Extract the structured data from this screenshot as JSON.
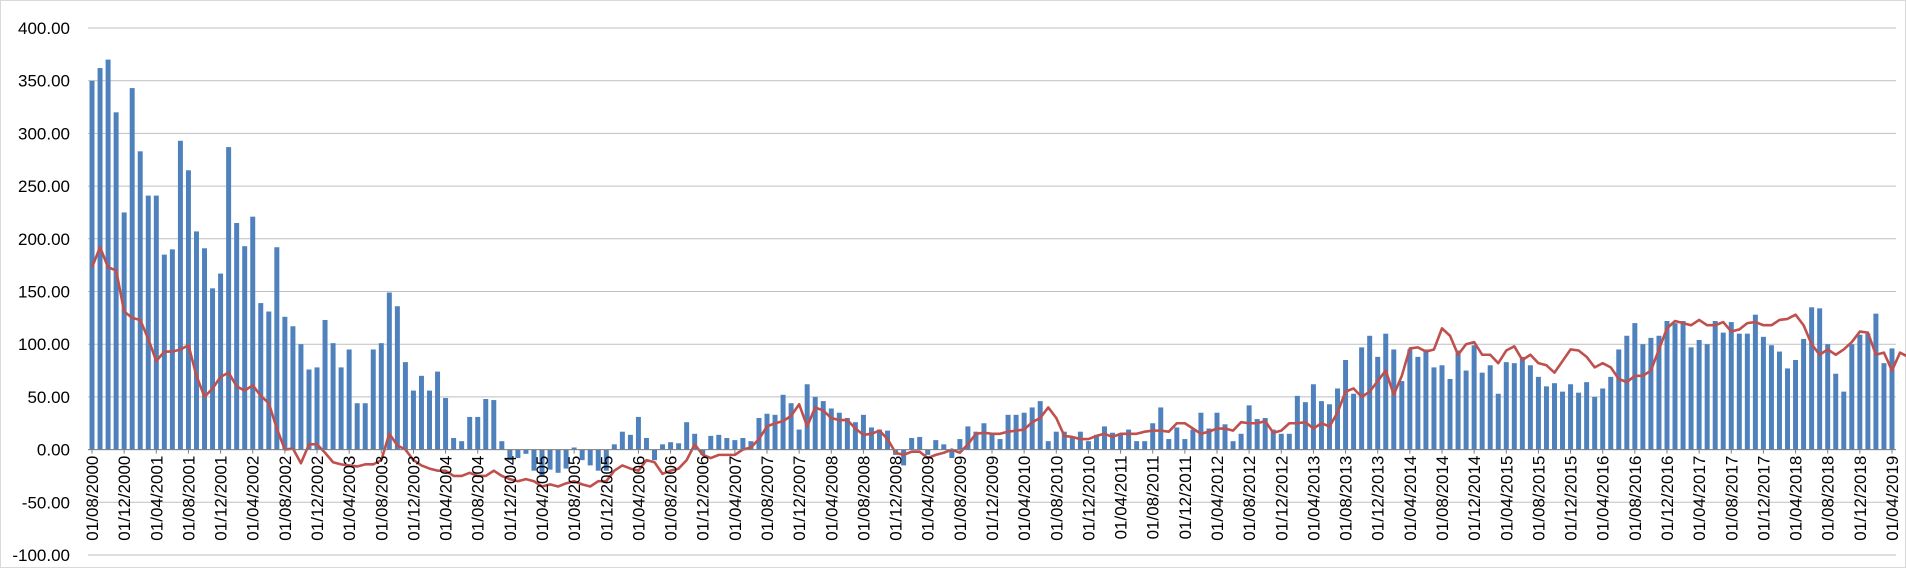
{
  "chart_data": {
    "type": "bar",
    "title": "",
    "xlabel": "",
    "ylabel": "",
    "ylim": [
      -100,
      400
    ],
    "grid": true,
    "legend": "none",
    "yticks": [
      "400.00",
      "350.00",
      "300.00",
      "250.00",
      "200.00",
      "150.00",
      "100.00",
      "50.00",
      "0.00",
      "-50.00",
      "-100.00"
    ],
    "x_labels": [
      "01/08/2000",
      "01/12/2000",
      "01/04/2001",
      "01/08/2001",
      "01/12/2001",
      "01/04/2002",
      "01/08/2002",
      "01/12/2002",
      "01/04/2003",
      "01/08/2003",
      "01/12/2003",
      "01/04/2004",
      "01/08/2004",
      "01/12/2004",
      "01/04/2005",
      "01/08/2005",
      "01/12/2005",
      "01/04/2006",
      "01/08/2006",
      "01/12/2006",
      "01/04/2007",
      "01/08/2007",
      "01/12/2007",
      "01/04/2008",
      "01/08/2008",
      "01/12/2008",
      "01/04/2009",
      "01/08/2009",
      "01/12/2009",
      "01/04/2010",
      "01/08/2010",
      "01/12/2010",
      "01/04/2011",
      "01/08/2011",
      "01/12/2011",
      "01/04/2012",
      "01/08/2012",
      "01/12/2012",
      "01/04/2013",
      "01/08/2013",
      "01/12/2013",
      "01/04/2014",
      "01/08/2014",
      "01/12/2014",
      "01/04/2015",
      "01/08/2015",
      "01/12/2015",
      "01/04/2016",
      "01/08/2016",
      "01/12/2016",
      "01/04/2017",
      "01/08/2017",
      "01/12/2017",
      "01/04/2018",
      "01/08/2018",
      "01/12/2018",
      "01/04/2019"
    ],
    "series": [
      {
        "kind": "bar",
        "color": "#4f81bd",
        "values": [
          350,
          362,
          370,
          320,
          225,
          343,
          283,
          241,
          241,
          185,
          190,
          293,
          265,
          207,
          191,
          153,
          167,
          287,
          215,
          193,
          221,
          139,
          131,
          192,
          126,
          117,
          100,
          76,
          78,
          123,
          101,
          78,
          95,
          44,
          44,
          95,
          101,
          149,
          136,
          83,
          56,
          70,
          56,
          74,
          49,
          11,
          8,
          31,
          31,
          48,
          47,
          8,
          -10,
          -8,
          -4,
          -20,
          -25,
          -19,
          -22,
          -18,
          2,
          -10,
          -15,
          -20,
          -20,
          5,
          17,
          14,
          31,
          11,
          -10,
          5,
          7,
          6,
          26,
          15,
          -5,
          13,
          14,
          11,
          9,
          11,
          8,
          30,
          34,
          33,
          52,
          44,
          19,
          62,
          50,
          46,
          39,
          35,
          30,
          26,
          33,
          21,
          19,
          18,
          -5,
          -15,
          11,
          12,
          -5,
          9,
          5,
          -8,
          10,
          22,
          17,
          25,
          15,
          10,
          33,
          33,
          35,
          40,
          46,
          8,
          17,
          17,
          11,
          17,
          8,
          14,
          22,
          16,
          15,
          19,
          8,
          8,
          25,
          40,
          10,
          21,
          10,
          19,
          35,
          20,
          35,
          24,
          8,
          15,
          42,
          29,
          30,
          19,
          15,
          15,
          51,
          45,
          62,
          46,
          43,
          58,
          85,
          53,
          97,
          108,
          88,
          110,
          95,
          65,
          95,
          88,
          95,
          78,
          80,
          67,
          94,
          75,
          99,
          73,
          80,
          53,
          83,
          82,
          88,
          80,
          69,
          60,
          63,
          55,
          62,
          54,
          64,
          50,
          58,
          69,
          95,
          108,
          120,
          100,
          106,
          108,
          122,
          120,
          122,
          97,
          104,
          100,
          122,
          111,
          121,
          110,
          110,
          128,
          107,
          99,
          93,
          77,
          85,
          105,
          135,
          134,
          100,
          72,
          55,
          100,
          109,
          110,
          129,
          82,
          96
        ]
      },
      {
        "kind": "line",
        "color": "#c0504d",
        "values": [
          173,
          192,
          173,
          170,
          131,
          125,
          123,
          105,
          84,
          93,
          93,
          95,
          99,
          70,
          50,
          58,
          69,
          73,
          60,
          56,
          61,
          51,
          44,
          20,
          0,
          1,
          -13,
          5,
          5,
          -3,
          -12,
          -14,
          -15,
          -16,
          -14,
          -14,
          -10,
          15,
          4,
          0,
          -10,
          -15,
          -18,
          -20,
          -20,
          -25,
          -25,
          -22,
          -25,
          -25,
          -20,
          -25,
          -28,
          -30,
          -28,
          -30,
          -35,
          -33,
          -35,
          -32,
          -30,
          -33,
          -35,
          -30,
          -30,
          -20,
          -15,
          -18,
          -20,
          -10,
          -12,
          -23,
          -20,
          -18,
          -10,
          5,
          -5,
          -8,
          -5,
          -5,
          -5,
          0,
          2,
          10,
          22,
          25,
          27,
          32,
          43,
          22,
          40,
          37,
          30,
          28,
          28,
          20,
          14,
          15,
          18,
          10,
          -3,
          -5,
          -2,
          -2,
          -8,
          -5,
          -3,
          0,
          -3,
          5,
          15,
          16,
          15,
          15,
          17,
          18,
          19,
          26,
          30,
          40,
          30,
          13,
          12,
          10,
          10,
          13,
          15,
          12,
          15,
          15,
          15,
          17,
          18,
          18,
          17,
          25,
          25,
          20,
          15,
          17,
          20,
          20,
          18,
          26,
          25,
          25,
          27,
          16,
          18,
          25,
          25,
          26,
          20,
          25,
          22,
          35,
          55,
          58,
          50,
          55,
          65,
          75,
          52,
          70,
          96,
          97,
          93,
          95,
          115,
          108,
          90,
          100,
          102,
          90,
          90,
          82,
          94,
          98,
          85,
          90,
          82,
          80,
          73,
          84,
          95,
          94,
          88,
          78,
          82,
          78,
          67,
          64,
          70,
          70,
          75,
          95,
          115,
          122,
          120,
          118,
          123,
          118,
          118,
          121,
          112,
          114,
          120,
          121,
          118,
          118,
          123,
          124,
          128,
          118,
          100,
          90,
          95,
          90,
          95,
          102,
          112,
          111,
          90,
          92,
          75,
          92,
          88,
          89,
          100,
          92,
          104
        ]
      }
    ]
  }
}
